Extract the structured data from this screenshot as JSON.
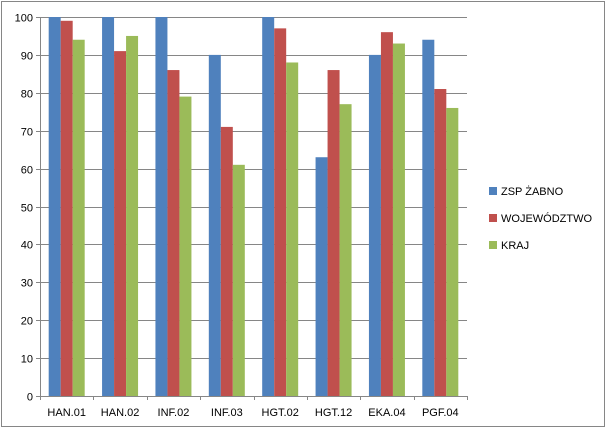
{
  "chart_data": {
    "type": "bar",
    "title": "",
    "xlabel": "",
    "ylabel": "",
    "ylim": [
      0,
      100
    ],
    "ytick_step": 10,
    "grid": true,
    "legend_position": "right",
    "categories": [
      "HAN.01",
      "HAN.02",
      "INF.02",
      "INF.03",
      "HGT.02",
      "HGT.12",
      "EKA.04",
      "PGF.04"
    ],
    "series": [
      {
        "name": "ZSP ŻABNO",
        "color": "#4f81bd",
        "values": [
          100,
          100,
          100,
          90,
          100,
          63,
          90,
          94
        ]
      },
      {
        "name": "WOJEWÓDZTWO",
        "color": "#c0504d",
        "values": [
          99,
          91,
          86,
          71,
          97,
          86,
          96,
          81
        ]
      },
      {
        "name": "KRAJ",
        "color": "#9bbb59",
        "values": [
          94,
          95,
          79,
          61,
          88,
          77,
          93,
          76
        ]
      }
    ]
  }
}
